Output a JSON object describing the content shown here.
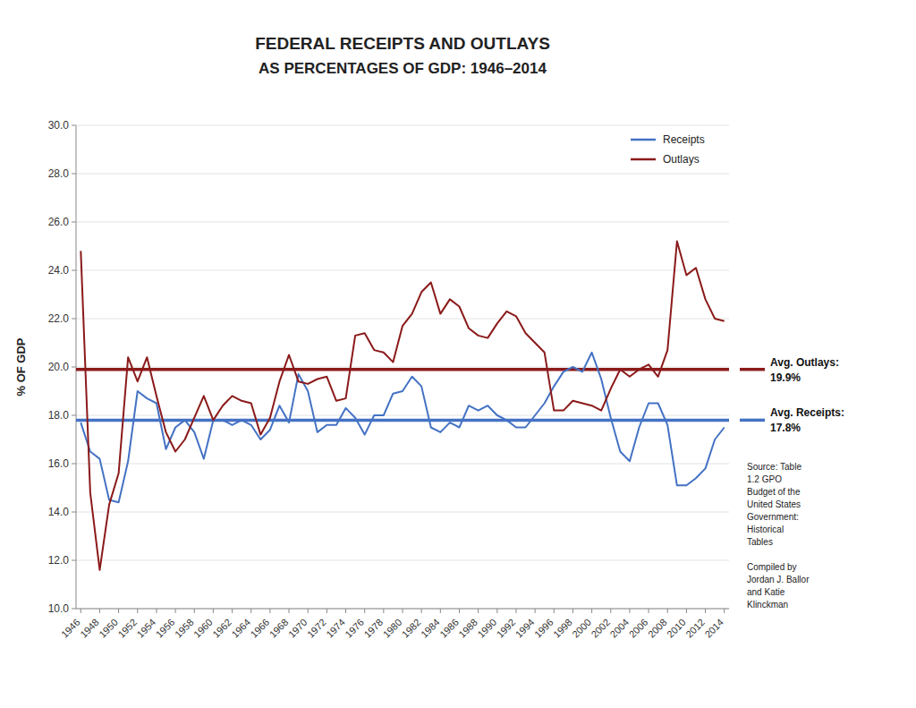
{
  "chart_data": {
    "type": "line",
    "title": "FEDERAL RECEIPTS AND OUTLAYS",
    "subtitle": "AS PERCENTAGES OF GDP: 1946–2014",
    "y_label": "% OF GDP",
    "x": [
      1946,
      1947,
      1948,
      1949,
      1950,
      1951,
      1952,
      1953,
      1954,
      1955,
      1956,
      1957,
      1958,
      1959,
      1960,
      1961,
      1962,
      1963,
      1964,
      1965,
      1966,
      1967,
      1968,
      1969,
      1970,
      1971,
      1972,
      1973,
      1974,
      1975,
      1976,
      1977,
      1978,
      1979,
      1980,
      1981,
      1982,
      1983,
      1984,
      1985,
      1986,
      1987,
      1988,
      1989,
      1990,
      1991,
      1992,
      1993,
      1994,
      1995,
      1996,
      1997,
      1998,
      1999,
      2000,
      2001,
      2002,
      2003,
      2004,
      2005,
      2006,
      2007,
      2008,
      2009,
      2010,
      2011,
      2012,
      2013,
      2014
    ],
    "series": [
      {
        "name": "Receipts",
        "color": "#4472C4",
        "values": [
          17.7,
          16.5,
          16.2,
          14.5,
          14.4,
          16.1,
          19.0,
          18.7,
          18.5,
          16.6,
          17.5,
          17.8,
          17.3,
          16.2,
          17.8,
          17.8,
          17.6,
          17.8,
          17.6,
          17.0,
          17.4,
          18.4,
          17.7,
          19.7,
          19.0,
          17.3,
          17.6,
          17.6,
          18.3,
          17.9,
          17.2,
          18.0,
          18.0,
          18.9,
          19.0,
          19.6,
          19.2,
          17.5,
          17.3,
          17.7,
          17.5,
          18.4,
          18.2,
          18.4,
          18.0,
          17.8,
          17.5,
          17.5,
          18.0,
          18.5,
          19.2,
          19.8,
          20.0,
          19.8,
          20.6,
          19.5,
          17.9,
          16.5,
          16.1,
          17.5,
          18.5,
          18.5,
          17.6,
          15.1,
          15.1,
          15.4,
          15.8,
          17.0,
          17.5
        ]
      },
      {
        "name": "Outlays",
        "color": "#8B1A1A",
        "values": [
          24.8,
          14.8,
          11.6,
          14.3,
          15.6,
          20.4,
          19.4,
          20.4,
          18.8,
          17.3,
          16.5,
          17.0,
          17.9,
          18.8,
          17.8,
          18.4,
          18.8,
          18.6,
          18.5,
          17.2,
          17.9,
          19.4,
          20.5,
          19.4,
          19.3,
          19.5,
          19.6,
          18.6,
          18.7,
          21.3,
          21.4,
          20.7,
          20.6,
          20.2,
          21.7,
          22.2,
          23.1,
          23.5,
          22.2,
          22.8,
          22.5,
          21.6,
          21.3,
          21.2,
          21.8,
          22.3,
          22.1,
          21.4,
          21.0,
          20.6,
          18.2,
          18.2,
          18.6,
          18.5,
          18.4,
          18.2,
          19.1,
          19.9,
          19.6,
          19.9,
          20.1,
          19.6,
          20.7,
          25.2,
          23.8,
          24.1,
          22.8,
          22.0,
          21.9
        ]
      }
    ],
    "annotations": [
      {
        "text": "Avg. Outlays:",
        "value": 19.9,
        "value_label": "19.9%",
        "color": "#8B1A1A"
      },
      {
        "text": "Avg. Receipts:",
        "value": 17.8,
        "value_label": "17.8%",
        "color": "#4472C4"
      },
      {
        "text": "Source: Table\n1.2 GPO\nBudget of the\nUnited States\nGovernment:\nHistorical\nTables\n\nCompiled by\nJordan J. Ballor\nand Katie\nKlinckman"
      }
    ],
    "xlim": [
      1945.5,
      2014.5
    ],
    "xticks": [
      1946,
      1948,
      1950,
      1952,
      1954,
      1956,
      1958,
      1960,
      1962,
      1964,
      1966,
      1968,
      1970,
      1972,
      1974,
      1976,
      1978,
      1980,
      1982,
      1984,
      1986,
      1988,
      1990,
      1992,
      1994,
      1996,
      1998,
      2000,
      2002,
      2004,
      2006,
      2008,
      2010,
      2012,
      2014
    ],
    "ylim": [
      10.0,
      30.0
    ],
    "yticks": [
      {
        "value": 10.0,
        "label": "10.0"
      },
      {
        "value": 12.0,
        "label": "12.0"
      },
      {
        "value": 14.0,
        "label": "14.0"
      },
      {
        "value": 16.0,
        "label": "16.0"
      },
      {
        "value": 18.0,
        "label": "18.0"
      },
      {
        "value": 20.0,
        "label": "20.0"
      },
      {
        "value": 22.0,
        "label": "22.0"
      },
      {
        "value": 24.0,
        "label": "24.0"
      },
      {
        "value": 26.0,
        "label": "26.0"
      },
      {
        "value": 28.0,
        "label": "28.0"
      },
      {
        "value": 30.0,
        "label": "30.0"
      }
    ],
    "grid": true,
    "legend": "upper right"
  }
}
